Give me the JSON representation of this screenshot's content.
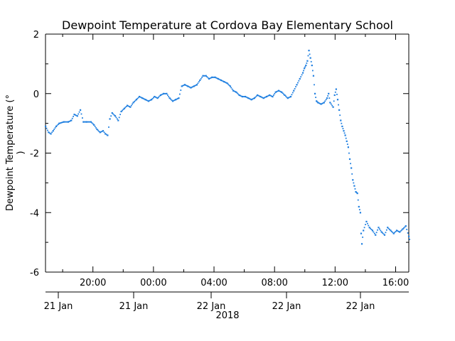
{
  "chart_data": {
    "type": "scatter",
    "title": "Dewpoint Temperature at Cordova Bay Elementary School",
    "ylabel": "Dewpoint Temperature (°",
    "ylabel_continuation": ")",
    "xlabel": "2018",
    "ylim": [
      -6,
      2
    ],
    "y_ticks": [
      "2",
      "0",
      "-2",
      "-4",
      "-6"
    ],
    "x_tick_labels": [
      "20:00",
      "00:00",
      "04:00",
      "08:00",
      "12:00",
      "16:00"
    ],
    "date_labels": [
      "21 Jan",
      "21 Jan",
      "22 Jan",
      "22 Jan",
      "22 Jan"
    ],
    "grid": false,
    "marker_color": "#1f7fe0",
    "x_unit": "hours since 2018-01-21 16:52",
    "series": [
      {
        "points": [
          [
            0.0,
            -1.1
          ],
          [
            0.2,
            -1.3
          ],
          [
            0.35,
            -1.35
          ],
          [
            0.5,
            -1.25
          ],
          [
            0.7,
            -1.1
          ],
          [
            0.9,
            -1.0
          ],
          [
            1.2,
            -0.95
          ],
          [
            1.5,
            -0.95
          ],
          [
            1.7,
            -0.9
          ],
          [
            1.9,
            -0.7
          ],
          [
            2.1,
            -0.75
          ],
          [
            2.3,
            -0.55
          ],
          [
            2.5,
            -0.95
          ],
          [
            2.7,
            -0.95
          ],
          [
            3.0,
            -0.95
          ],
          [
            3.2,
            -1.05
          ],
          [
            3.4,
            -1.2
          ],
          [
            3.6,
            -1.3
          ],
          [
            3.8,
            -1.25
          ],
          [
            3.95,
            -1.35
          ],
          [
            4.1,
            -1.4
          ],
          [
            4.25,
            -0.85
          ],
          [
            4.4,
            -0.65
          ],
          [
            4.6,
            -0.75
          ],
          [
            4.8,
            -0.9
          ],
          [
            5.0,
            -0.6
          ],
          [
            5.2,
            -0.5
          ],
          [
            5.4,
            -0.4
          ],
          [
            5.6,
            -0.45
          ],
          [
            5.8,
            -0.3
          ],
          [
            6.0,
            -0.2
          ],
          [
            6.2,
            -0.1
          ],
          [
            6.4,
            -0.15
          ],
          [
            6.6,
            -0.2
          ],
          [
            6.8,
            -0.25
          ],
          [
            7.0,
            -0.2
          ],
          [
            7.2,
            -0.1
          ],
          [
            7.4,
            -0.15
          ],
          [
            7.6,
            -0.05
          ],
          [
            7.8,
            0.0
          ],
          [
            8.0,
            0.0
          ],
          [
            8.2,
            -0.15
          ],
          [
            8.4,
            -0.25
          ],
          [
            8.6,
            -0.2
          ],
          [
            8.8,
            -0.15
          ],
          [
            9.0,
            0.25
          ],
          [
            9.2,
            0.3
          ],
          [
            9.4,
            0.25
          ],
          [
            9.6,
            0.2
          ],
          [
            9.8,
            0.25
          ],
          [
            10.0,
            0.3
          ],
          [
            10.2,
            0.45
          ],
          [
            10.4,
            0.6
          ],
          [
            10.6,
            0.6
          ],
          [
            10.8,
            0.5
          ],
          [
            11.0,
            0.55
          ],
          [
            11.2,
            0.55
          ],
          [
            11.4,
            0.5
          ],
          [
            11.6,
            0.45
          ],
          [
            11.8,
            0.4
          ],
          [
            12.0,
            0.35
          ],
          [
            12.2,
            0.25
          ],
          [
            12.4,
            0.1
          ],
          [
            12.6,
            0.05
          ],
          [
            12.8,
            -0.05
          ],
          [
            13.0,
            -0.1
          ],
          [
            13.2,
            -0.1
          ],
          [
            13.4,
            -0.15
          ],
          [
            13.6,
            -0.2
          ],
          [
            13.8,
            -0.15
          ],
          [
            14.0,
            -0.05
          ],
          [
            14.2,
            -0.1
          ],
          [
            14.4,
            -0.15
          ],
          [
            14.6,
            -0.1
          ],
          [
            14.8,
            -0.05
          ],
          [
            15.0,
            -0.1
          ],
          [
            15.2,
            0.05
          ],
          [
            15.4,
            0.1
          ],
          [
            15.6,
            0.05
          ],
          [
            15.8,
            -0.05
          ],
          [
            16.0,
            -0.15
          ],
          [
            16.2,
            -0.1
          ],
          [
            16.4,
            0.1
          ],
          [
            16.6,
            0.3
          ],
          [
            16.8,
            0.5
          ],
          [
            17.0,
            0.7
          ],
          [
            17.1,
            0.85
          ],
          [
            17.2,
            0.95
          ],
          [
            17.3,
            1.1
          ],
          [
            17.4,
            1.45
          ],
          [
            17.5,
            1.2
          ],
          [
            17.6,
            0.95
          ],
          [
            17.7,
            0.6
          ],
          [
            17.8,
            0.0
          ],
          [
            17.9,
            -0.25
          ],
          [
            18.0,
            -0.3
          ],
          [
            18.2,
            -0.35
          ],
          [
            18.4,
            -0.3
          ],
          [
            18.6,
            -0.15
          ],
          [
            18.7,
            0.0
          ],
          [
            18.8,
            -0.3
          ],
          [
            19.0,
            -0.45
          ],
          [
            19.1,
            -0.05
          ],
          [
            19.2,
            0.15
          ],
          [
            19.3,
            -0.2
          ],
          [
            19.4,
            -0.55
          ],
          [
            19.5,
            -0.9
          ],
          [
            19.6,
            -1.1
          ],
          [
            19.7,
            -1.25
          ],
          [
            19.8,
            -1.4
          ],
          [
            19.9,
            -1.6
          ],
          [
            20.0,
            -1.8
          ],
          [
            20.1,
            -2.2
          ],
          [
            20.2,
            -2.5
          ],
          [
            20.3,
            -2.9
          ],
          [
            20.4,
            -3.1
          ],
          [
            20.5,
            -3.3
          ],
          [
            20.6,
            -3.35
          ],
          [
            20.7,
            -3.8
          ],
          [
            20.8,
            -4.0
          ],
          [
            20.85,
            -4.7
          ],
          [
            20.9,
            -5.05
          ],
          [
            21.0,
            -4.6
          ],
          [
            21.2,
            -4.3
          ],
          [
            21.4,
            -4.5
          ],
          [
            21.6,
            -4.6
          ],
          [
            21.8,
            -4.75
          ],
          [
            22.0,
            -4.5
          ],
          [
            22.2,
            -4.65
          ],
          [
            22.4,
            -4.75
          ],
          [
            22.6,
            -4.5
          ],
          [
            22.8,
            -4.6
          ],
          [
            23.0,
            -4.7
          ],
          [
            23.2,
            -4.6
          ],
          [
            23.4,
            -4.65
          ],
          [
            23.6,
            -4.55
          ],
          [
            23.8,
            -4.45
          ],
          [
            24.0,
            -4.8
          ],
          [
            24.1,
            -5.0
          ]
        ]
      }
    ]
  }
}
